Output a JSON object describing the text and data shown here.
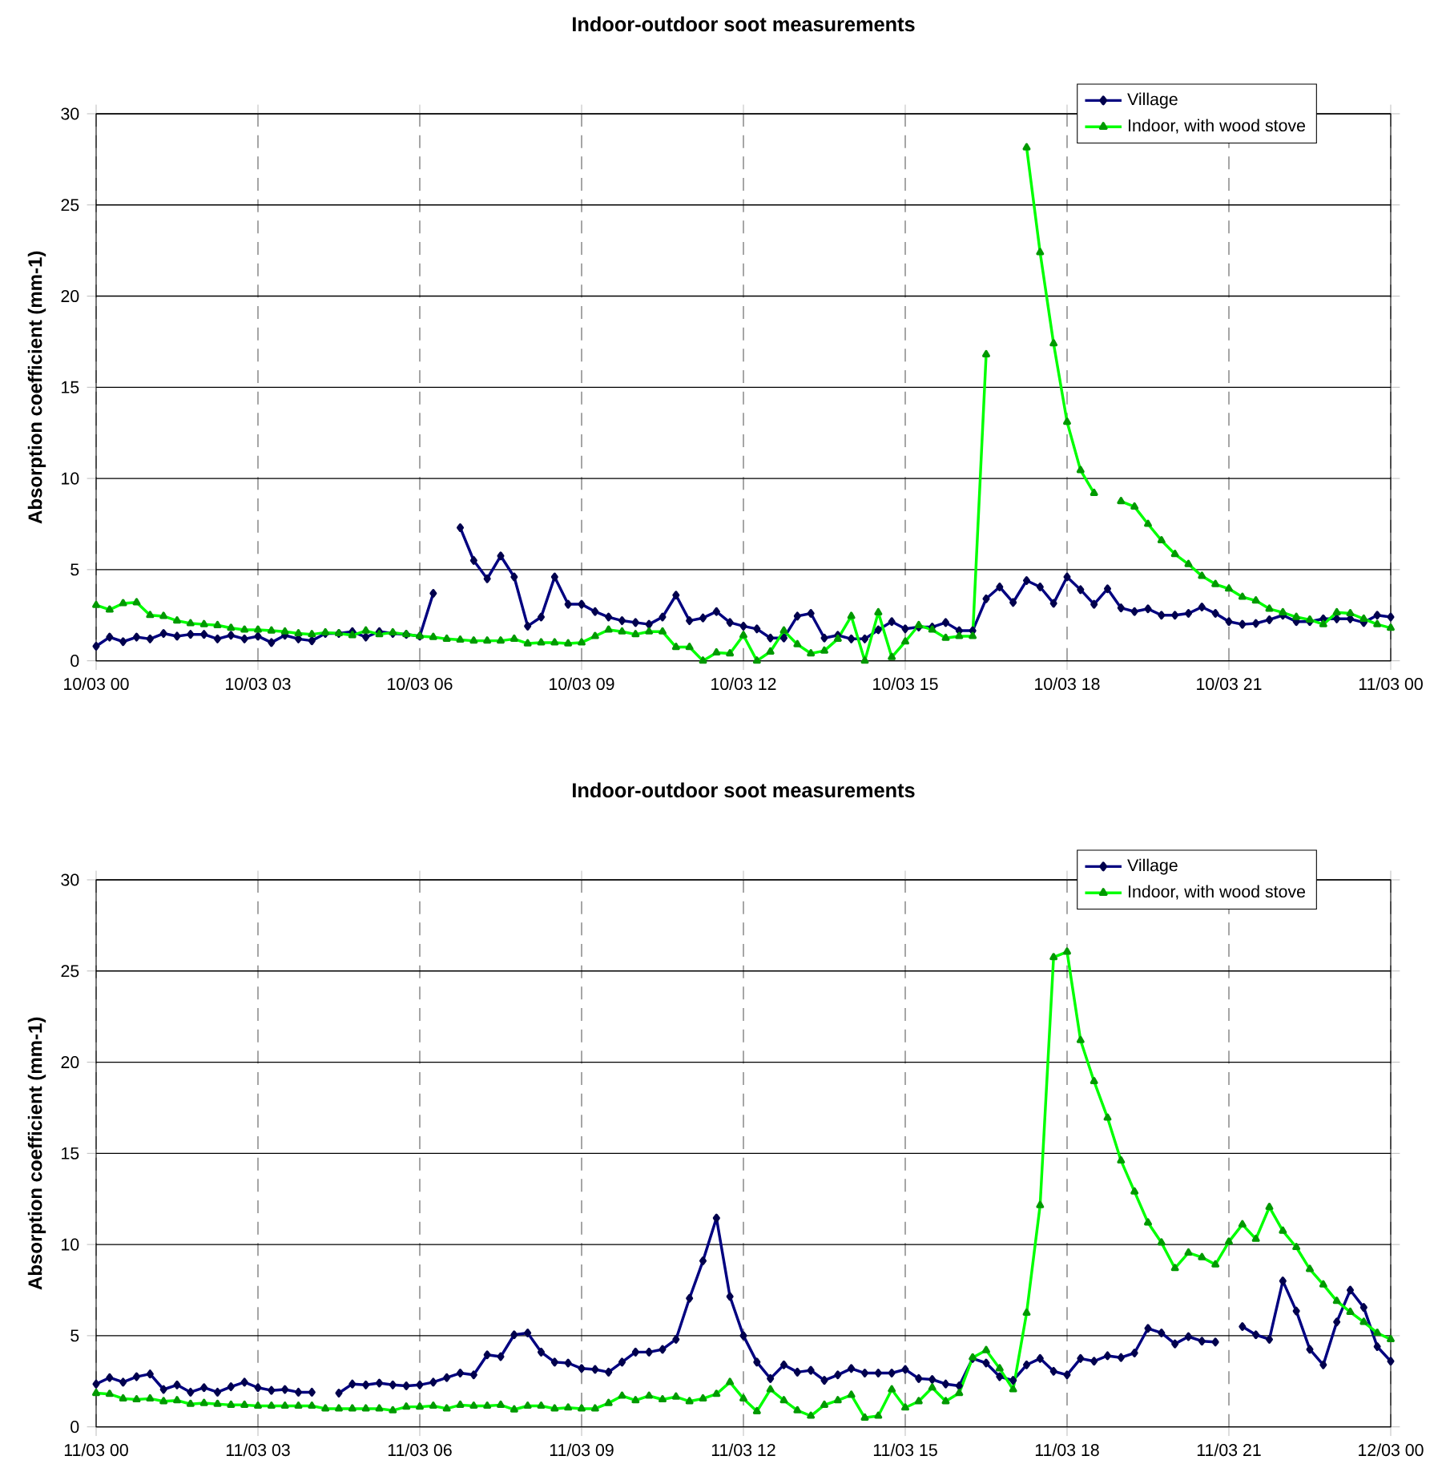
{
  "chart_data": [
    {
      "type": "line",
      "title": "Indoor-outdoor soot measurements",
      "ylabel": "Absorption coefficient (mm-1)",
      "categories": [
        "10/03 00",
        null,
        null,
        null,
        null,
        null,
        null,
        null,
        null,
        null,
        null,
        null,
        "10/03 03",
        null,
        null,
        null,
        null,
        null,
        null,
        null,
        null,
        null,
        null,
        null,
        "10/03 06",
        null,
        null,
        null,
        null,
        null,
        null,
        null,
        null,
        null,
        null,
        null,
        "10/03 09",
        null,
        null,
        null,
        null,
        null,
        null,
        null,
        null,
        null,
        null,
        null,
        "10/03 12",
        null,
        null,
        null,
        null,
        null,
        null,
        null,
        null,
        null,
        null,
        null,
        "10/03 15",
        null,
        null,
        null,
        null,
        null,
        null,
        null,
        null,
        null,
        null,
        null,
        "10/03 18",
        null,
        null,
        null,
        null,
        null,
        null,
        null,
        null,
        null,
        null,
        null,
        "10/03 21",
        null,
        null,
        null,
        null,
        null,
        null,
        null,
        null,
        null,
        null,
        null,
        "11/03 00"
      ],
      "ylim": [
        0,
        30
      ],
      "yticks": [
        0,
        5,
        10,
        15,
        20,
        25,
        30
      ],
      "grid": true,
      "legend": "top right",
      "series": [
        {
          "name": "Village",
          "color": "#000080",
          "marker": "diamond",
          "values": [
            0.8,
            1.3,
            1.05,
            1.3,
            1.2,
            1.5,
            1.35,
            1.45,
            1.45,
            1.2,
            1.4,
            1.2,
            1.35,
            1.0,
            1.4,
            1.2,
            1.1,
            1.5,
            1.5,
            1.6,
            1.3,
            1.6,
            1.5,
            1.45,
            1.35,
            3.7,
            null,
            7.3,
            5.5,
            4.5,
            5.75,
            4.6,
            1.9,
            2.4,
            4.6,
            3.1,
            3.1,
            2.7,
            2.4,
            2.2,
            2.1,
            2.0,
            2.4,
            3.6,
            2.2,
            2.35,
            2.7,
            2.1,
            1.9,
            1.75,
            1.25,
            1.25,
            2.45,
            2.6,
            1.25,
            1.4,
            1.2,
            1.2,
            1.7,
            2.15,
            1.75,
            1.85,
            1.85,
            2.1,
            1.65,
            1.65,
            3.4,
            4.05,
            3.2,
            4.4,
            4.05,
            3.15,
            4.6,
            3.9,
            3.1,
            3.95,
            2.9,
            2.7,
            2.85,
            2.5,
            2.5,
            2.6,
            2.95,
            2.6,
            2.15,
            2.0,
            2.05,
            2.25,
            2.5,
            2.15,
            2.15,
            2.3,
            2.3,
            2.3,
            2.1,
            2.5,
            2.4
          ]
        },
        {
          "name": "Indoor, with wood stove",
          "color": "#00ff00",
          "marker": "triangle",
          "values": [
            3.05,
            2.8,
            3.15,
            3.2,
            2.5,
            2.45,
            2.2,
            2.05,
            2.0,
            1.95,
            1.8,
            1.7,
            1.7,
            1.65,
            1.6,
            1.5,
            1.45,
            1.55,
            1.5,
            1.4,
            1.65,
            1.45,
            1.55,
            1.45,
            1.35,
            1.3,
            1.2,
            1.15,
            1.1,
            1.1,
            1.1,
            1.2,
            0.95,
            1.0,
            1.0,
            0.95,
            1.0,
            1.35,
            1.7,
            1.6,
            1.45,
            1.6,
            1.6,
            0.75,
            0.75,
            0,
            0.45,
            0.4,
            1.4,
            0,
            0.5,
            1.65,
            0.9,
            0.4,
            0.55,
            1.2,
            2.45,
            0,
            2.65,
            0.2,
            1.05,
            1.95,
            1.7,
            1.25,
            1.35,
            1.35,
            16.8,
            null,
            null,
            28.15,
            22.4,
            17.4,
            13.1,
            10.45,
            9.2,
            null,
            8.75,
            8.45,
            7.5,
            6.6,
            5.85,
            5.3,
            4.65,
            4.2,
            3.95,
            3.5,
            3.3,
            2.85,
            2.65,
            2.4,
            2.25,
            2.0,
            2.65,
            2.6,
            2.3,
            2.0,
            1.8
          ]
        }
      ]
    },
    {
      "type": "line",
      "title": "Indoor-outdoor soot measurements",
      "ylabel": "Absorption coefficient (mm-1)",
      "categories": [
        "11/03 00",
        null,
        null,
        null,
        null,
        null,
        null,
        null,
        null,
        null,
        null,
        null,
        "11/03 03",
        null,
        null,
        null,
        null,
        null,
        null,
        null,
        null,
        null,
        null,
        null,
        "11/03 06",
        null,
        null,
        null,
        null,
        null,
        null,
        null,
        null,
        null,
        null,
        null,
        "11/03 09",
        null,
        null,
        null,
        null,
        null,
        null,
        null,
        null,
        null,
        null,
        null,
        "11/03 12",
        null,
        null,
        null,
        null,
        null,
        null,
        null,
        null,
        null,
        null,
        null,
        "11/03 15",
        null,
        null,
        null,
        null,
        null,
        null,
        null,
        null,
        null,
        null,
        null,
        "11/03 18",
        null,
        null,
        null,
        null,
        null,
        null,
        null,
        null,
        null,
        null,
        null,
        "11/03 21",
        null,
        null,
        null,
        null,
        null,
        null,
        null,
        null,
        null,
        null,
        null,
        "12/03 00"
      ],
      "ylim": [
        0,
        30
      ],
      "yticks": [
        0,
        5,
        10,
        15,
        20,
        25,
        30
      ],
      "grid": true,
      "legend": "top right",
      "series": [
        {
          "name": "Village",
          "color": "#000080",
          "marker": "diamond",
          "values": [
            2.35,
            2.7,
            2.45,
            2.75,
            2.9,
            2.05,
            2.3,
            1.9,
            2.15,
            1.9,
            2.2,
            2.45,
            2.15,
            2.0,
            2.05,
            1.9,
            1.9,
            null,
            1.85,
            2.35,
            2.3,
            2.4,
            2.3,
            2.25,
            2.3,
            2.45,
            2.7,
            2.95,
            2.85,
            3.95,
            3.85,
            5.05,
            5.15,
            4.1,
            3.55,
            3.5,
            3.2,
            3.15,
            3.0,
            3.55,
            4.1,
            4.1,
            4.25,
            4.8,
            7.05,
            9.1,
            11.45,
            7.15,
            5.0,
            3.55,
            2.65,
            3.4,
            3.0,
            3.1,
            2.55,
            2.85,
            3.2,
            2.95,
            2.95,
            2.95,
            3.15,
            2.65,
            2.6,
            2.35,
            2.25,
            3.75,
            3.5,
            2.75,
            2.55,
            3.4,
            3.75,
            3.05,
            2.85,
            3.75,
            3.6,
            3.9,
            3.8,
            4.05,
            5.4,
            5.15,
            4.55,
            4.95,
            4.7,
            4.65,
            null,
            5.5,
            5.05,
            4.8,
            8.0,
            6.35,
            4.25,
            3.4,
            5.75,
            7.5,
            6.55,
            4.4,
            3.6
          ]
        },
        {
          "name": "Indoor, with wood stove",
          "color": "#00ff00",
          "marker": "triangle",
          "values": [
            1.85,
            1.8,
            1.55,
            1.5,
            1.55,
            1.4,
            1.45,
            1.25,
            1.3,
            1.25,
            1.2,
            1.2,
            1.15,
            1.15,
            1.15,
            1.15,
            1.15,
            1.0,
            1.0,
            1.0,
            1.0,
            1.0,
            0.9,
            1.1,
            1.1,
            1.15,
            1.0,
            1.2,
            1.15,
            1.15,
            1.2,
            0.95,
            1.15,
            1.15,
            1.0,
            1.05,
            1.0,
            1.0,
            1.3,
            1.7,
            1.45,
            1.7,
            1.5,
            1.65,
            1.4,
            1.55,
            1.8,
            2.45,
            1.55,
            0.85,
            2.05,
            1.45,
            0.9,
            0.6,
            1.2,
            1.45,
            1.75,
            0.5,
            0.6,
            2.05,
            1.05,
            1.4,
            2.15,
            1.4,
            1.85,
            3.8,
            4.2,
            3.2,
            2.05,
            6.25,
            12.15,
            25.75,
            26.05,
            21.2,
            18.95,
            16.95,
            14.6,
            12.9,
            11.2,
            10.1,
            8.7,
            9.55,
            9.3,
            8.9,
            10.15,
            11.1,
            10.3,
            12.05,
            10.75,
            9.85,
            8.65,
            7.8,
            6.9,
            6.3,
            5.75,
            5.15,
            4.8
          ]
        }
      ]
    }
  ]
}
